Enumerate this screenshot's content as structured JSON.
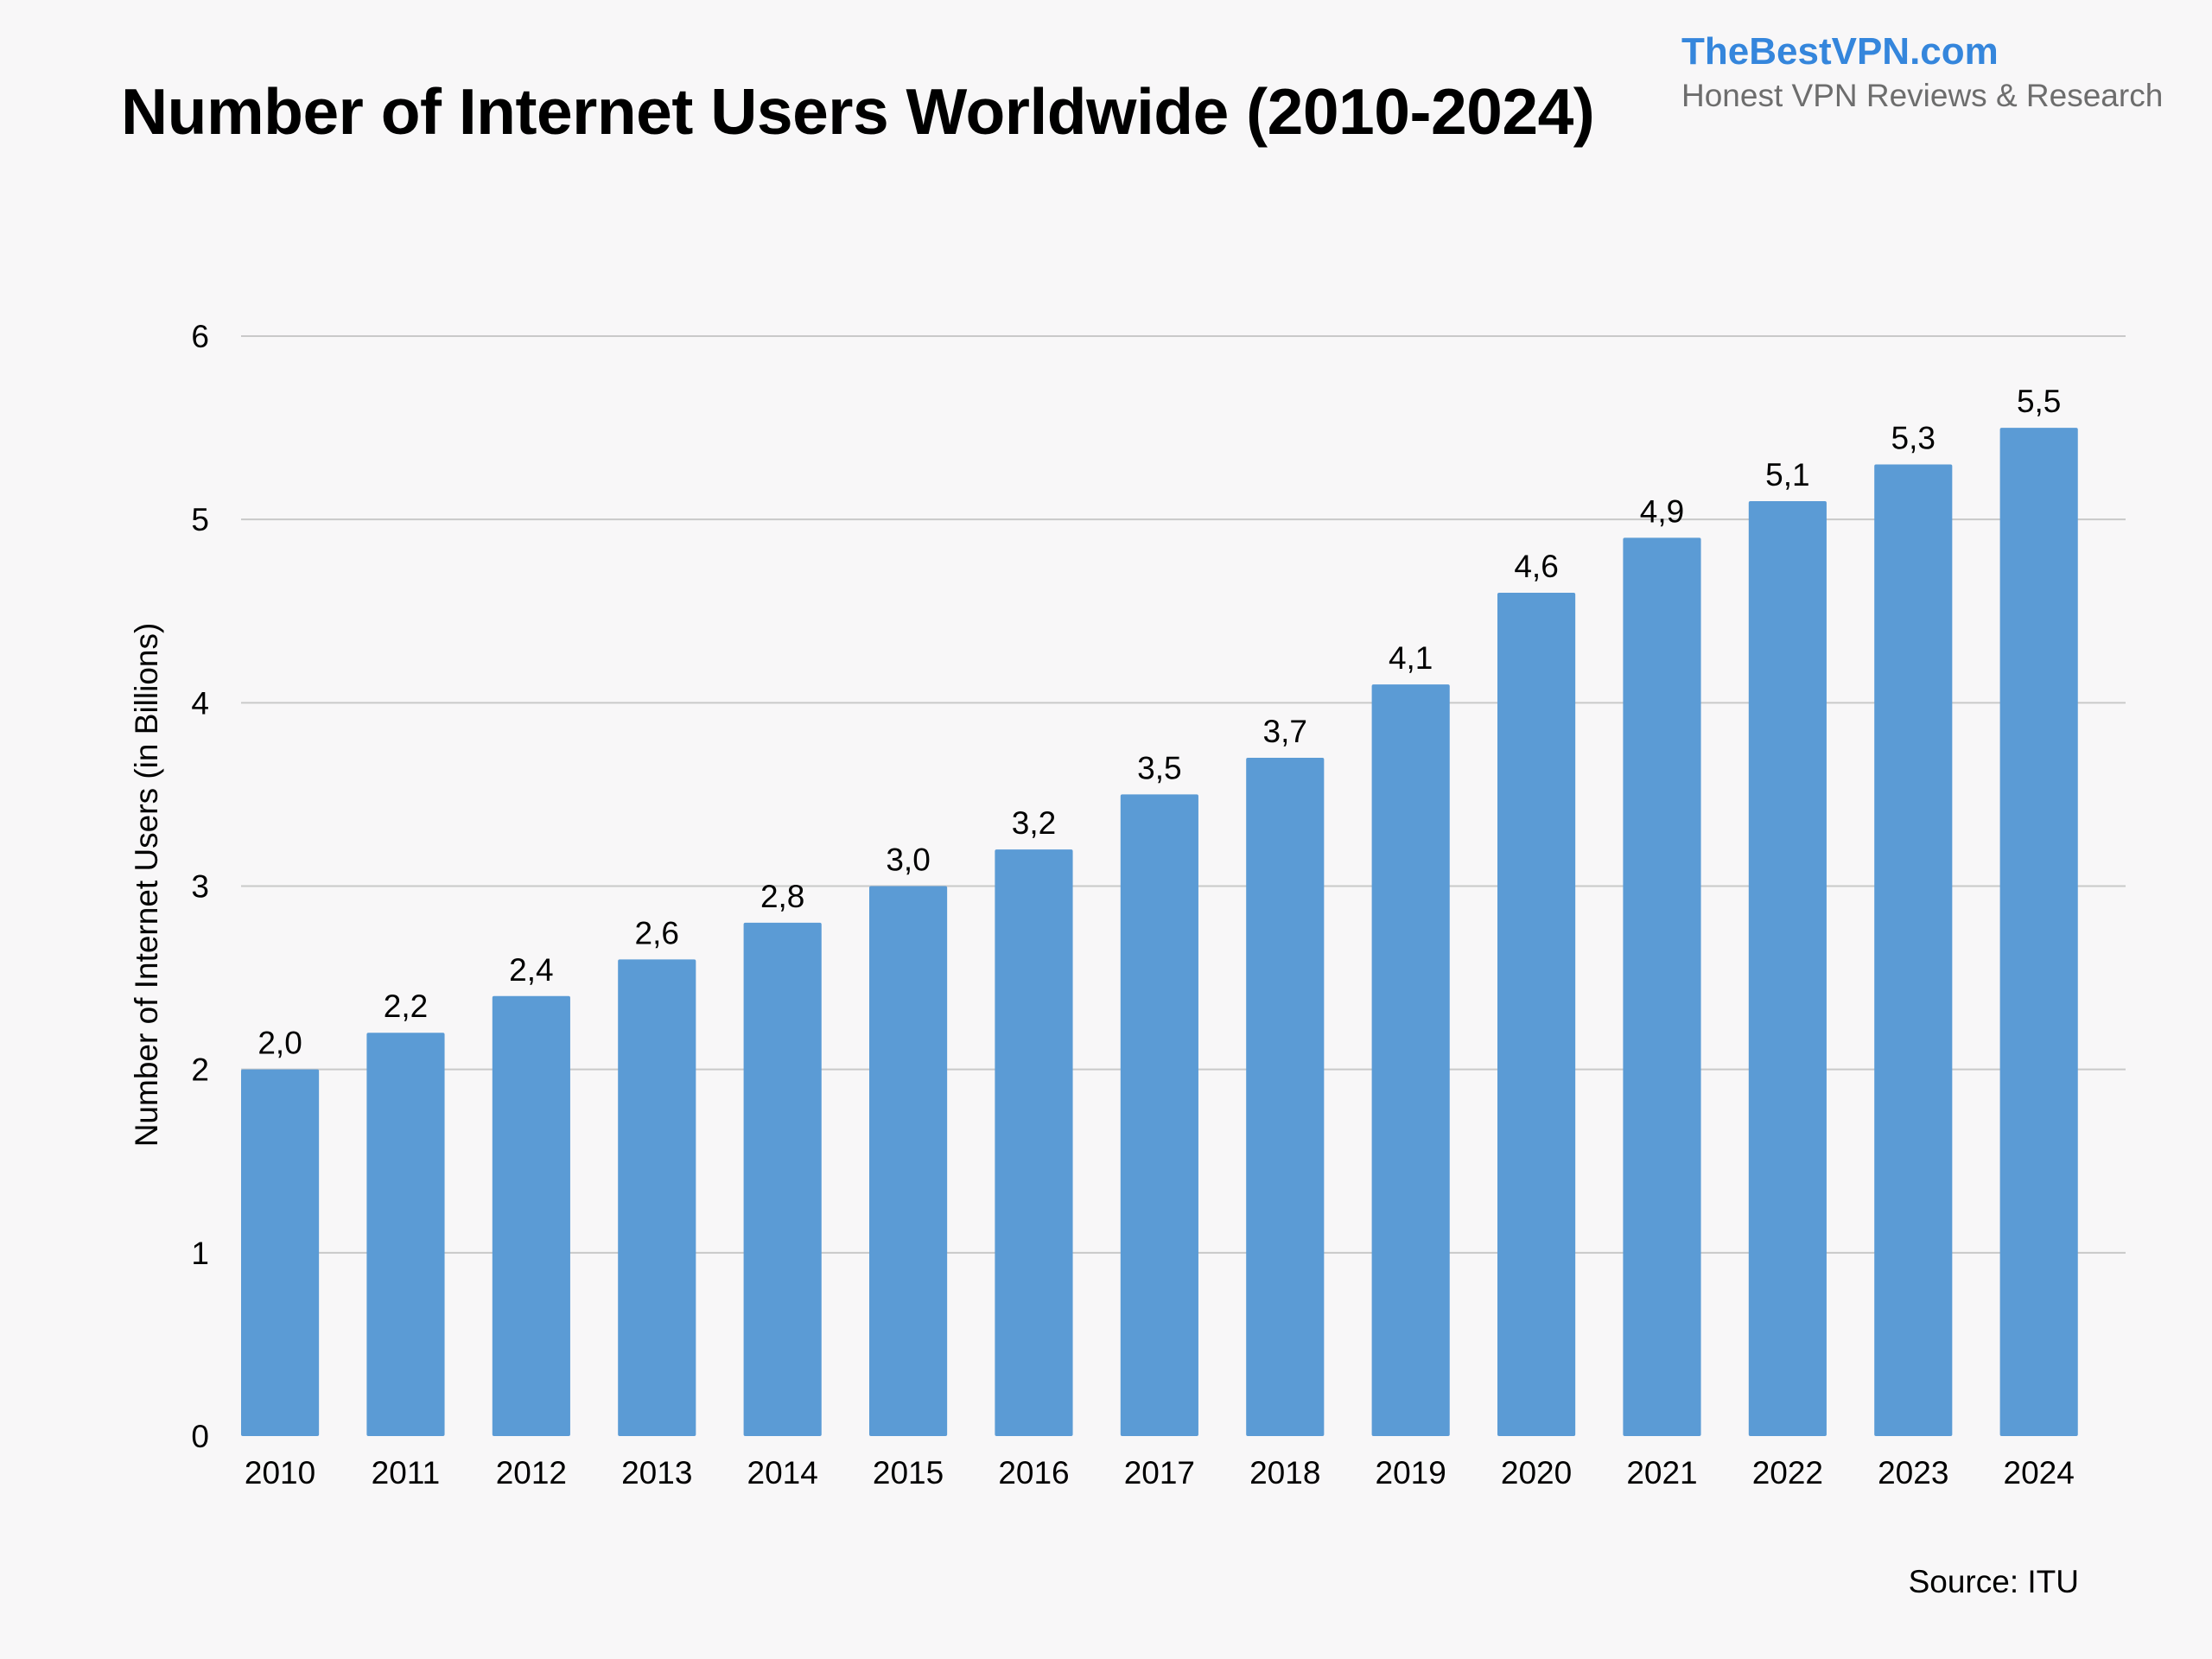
{
  "brand": {
    "name": "TheBestVPN.com",
    "tagline": "Honest VPN Reviews & Research"
  },
  "source": "Source: ITU",
  "colors": {
    "bar": "#5b9bd5",
    "grid": "#c9c9c9",
    "background": "#f8f7f8",
    "brand": "#3586dc"
  },
  "chart_data": {
    "type": "bar",
    "title": "Number of Internet Users Worldwide (2010-2024)",
    "xlabel": "",
    "ylabel": "Number of Internet Users (in Billions)",
    "categories": [
      "2010",
      "2011",
      "2012",
      "2013",
      "2014",
      "2015",
      "2016",
      "2017",
      "2018",
      "2019",
      "2020",
      "2021",
      "2022",
      "2023",
      "2024"
    ],
    "values": [
      2.0,
      2.2,
      2.4,
      2.6,
      2.8,
      3.0,
      3.2,
      3.5,
      3.7,
      4.1,
      4.6,
      4.9,
      5.1,
      5.3,
      5.5
    ],
    "data_labels": [
      "2,0",
      "2,2",
      "2,4",
      "2,6",
      "2,8",
      "3,0",
      "3,2",
      "3,5",
      "3,7",
      "4,1",
      "4,6",
      "4,9",
      "5,1",
      "5,3",
      "5,5"
    ],
    "yticks": [
      "0",
      "1",
      "2",
      "3",
      "4",
      "5",
      "6"
    ],
    "ylim": [
      0,
      6
    ],
    "grid": true,
    "legend": "none"
  }
}
